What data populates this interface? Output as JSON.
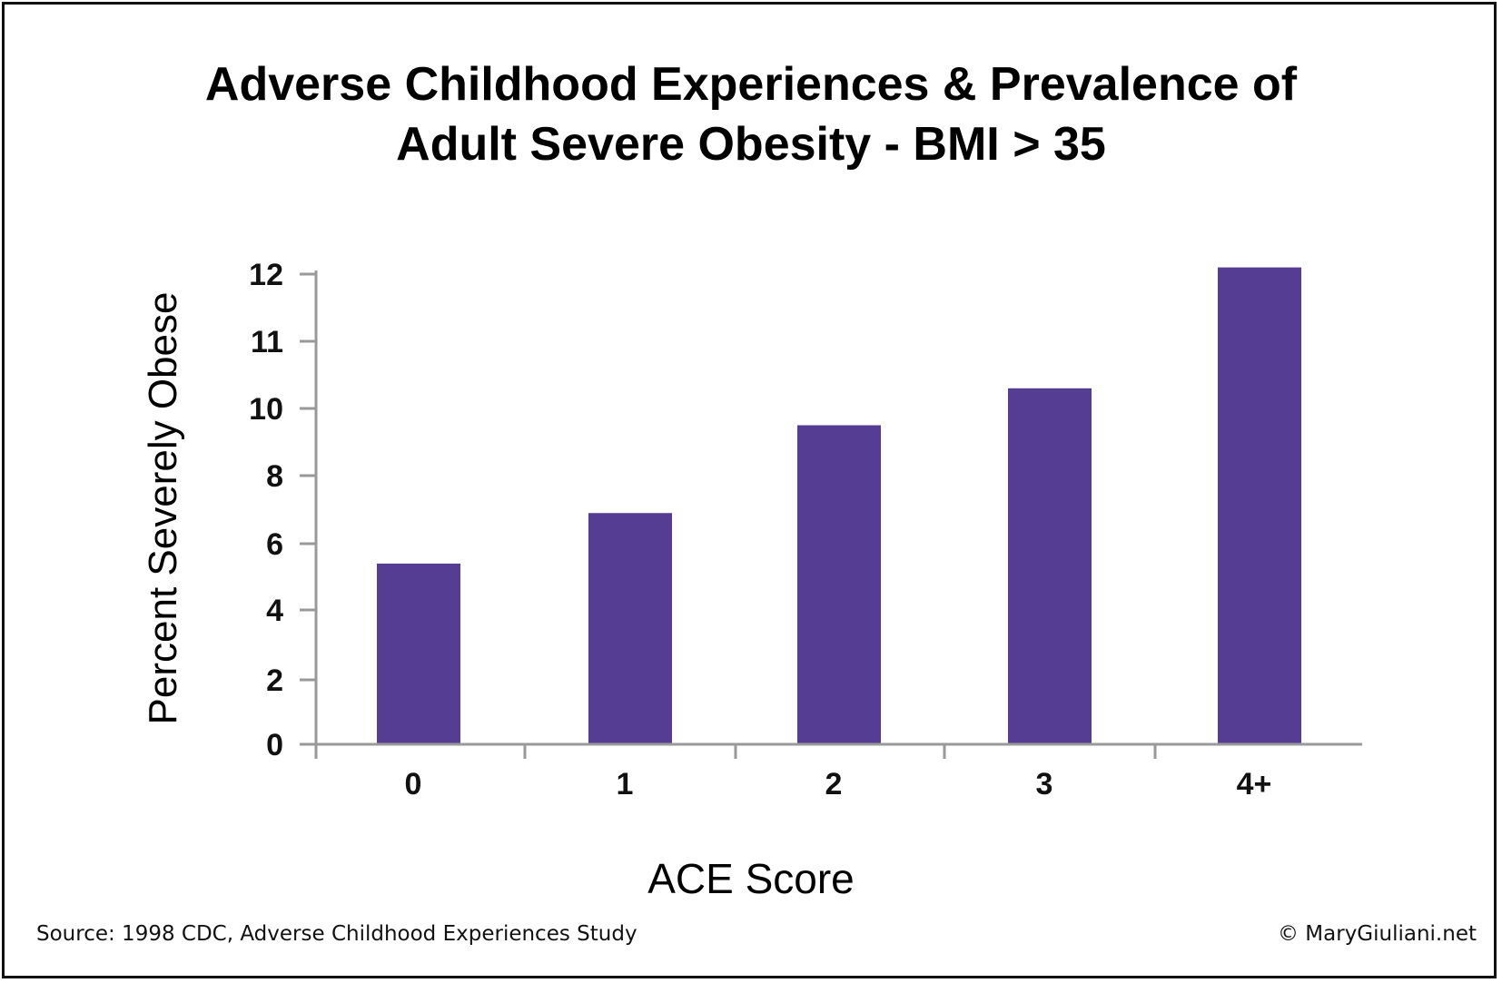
{
  "chart_data": {
    "type": "bar",
    "title_lines": [
      "Adverse Childhood Experiences & Prevalence of",
      "Adult Severe Obesity - BMI > 35"
    ],
    "xlabel": "ACE Score",
    "ylabel": "Percent Severely Obese",
    "categories": [
      "0",
      "1",
      "2",
      "3",
      "4+"
    ],
    "values": [
      5.4,
      6.9,
      9.5,
      10.3,
      12.1
    ],
    "ytick_labels": [
      "0",
      "2",
      "4",
      "6",
      "8",
      "10",
      "11",
      "12"
    ],
    "ylim": [
      0,
      12
    ],
    "grid": false,
    "legend": "none",
    "bar_color": "#553d94",
    "axis_color": "#999999"
  },
  "footer": {
    "source": "Source: 1998 CDC, Adverse Childhood Experiences Study",
    "copyright": "© MaryGiuliani.net"
  }
}
